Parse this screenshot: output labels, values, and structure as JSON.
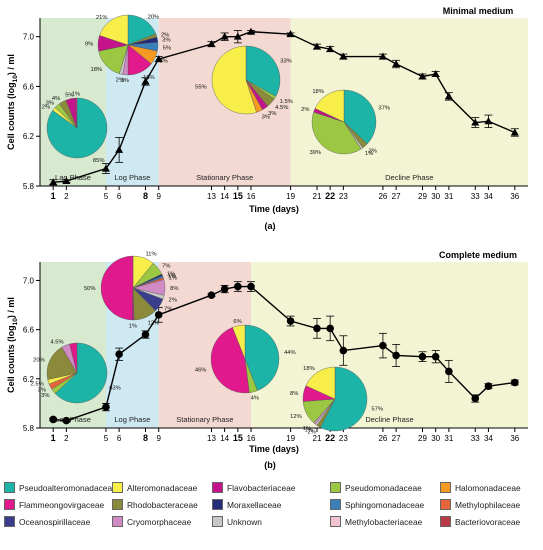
{
  "chart_data": [
    {
      "type": "line",
      "title": "Minimal medium",
      "panel_label": "(a)",
      "xlabel": "Time (days)",
      "ylabel": "Cell counts (log10) / ml",
      "ylabel_parts": [
        "Cell counts (log",
        "10",
        ") / ml"
      ],
      "ylim": [
        5.8,
        7.15
      ],
      "yticks": [
        "5.8",
        "6.2",
        "6.6",
        "7.0"
      ],
      "xticks": [
        {
          "v": 1,
          "label": "1",
          "bold": true
        },
        {
          "v": 2,
          "label": "2"
        },
        {
          "v": 5,
          "label": "5"
        },
        {
          "v": 6,
          "label": "6"
        },
        {
          "v": 8,
          "label": "8",
          "bold": true
        },
        {
          "v": 9,
          "label": "9"
        },
        {
          "v": 13,
          "label": "13"
        },
        {
          "v": 14,
          "label": "14"
        },
        {
          "v": 15,
          "label": "15",
          "bold": true
        },
        {
          "v": 16,
          "label": "16"
        },
        {
          "v": 19,
          "label": "19"
        },
        {
          "v": 21,
          "label": "21"
        },
        {
          "v": 22,
          "label": "22",
          "bold": true
        },
        {
          "v": 23,
          "label": "23"
        },
        {
          "v": 26,
          "label": "26"
        },
        {
          "v": 27,
          "label": "27"
        },
        {
          "v": 29,
          "label": "29"
        },
        {
          "v": 30,
          "label": "30"
        },
        {
          "v": 31,
          "label": "31"
        },
        {
          "v": 33,
          "label": "33"
        },
        {
          "v": 34,
          "label": "34"
        },
        {
          "v": 36,
          "label": "36"
        }
      ],
      "phases": [
        {
          "name": "Lag Phase",
          "from": 0,
          "to": 5,
          "color": "#d7e9cf"
        },
        {
          "name": "Log Phase",
          "from": 5,
          "to": 9,
          "color": "#cfe9f3"
        },
        {
          "name": "Stationary Phase",
          "from": 9,
          "to": 19,
          "color": "#f3d9d2"
        },
        {
          "name": "Decline Phase",
          "from": 19,
          "to": 37,
          "color": "#f3f4d4"
        }
      ],
      "marker": "triangle",
      "series": [
        {
          "x": [
            1,
            2,
            5,
            6,
            8,
            9,
            13,
            14,
            15,
            16,
            19,
            21,
            22,
            23,
            26,
            27,
            29,
            30,
            31,
            33,
            34,
            36
          ],
          "y": [
            5.83,
            5.84,
            5.94,
            6.09,
            6.64,
            6.82,
            6.94,
            7.0,
            7.0,
            7.04,
            7.02,
            6.92,
            6.9,
            6.84,
            6.84,
            6.78,
            6.68,
            6.7,
            6.52,
            6.31,
            6.32,
            6.23
          ],
          "err": [
            0.02,
            0.01,
            0.04,
            0.1,
            0.03,
            0.02,
            0.02,
            0.03,
            0.05,
            0.01,
            0.01,
            0.02,
            0.02,
            0.02,
            0.02,
            0.03,
            0.02,
            0.02,
            0.03,
            0.04,
            0.05,
            0.03
          ]
        }
      ],
      "pies": [
        {
          "day": 1,
          "slices": [
            {
              "family": "Pseudoalteromonadaceae",
              "pct": 85,
              "label": "85%"
            },
            {
              "family": "Alteromonadaceae",
              "pct": 2,
              "label": "2%"
            },
            {
              "family": "Pseudomonadaceae",
              "pct": 3,
              "label": "3%"
            },
            {
              "family": "Rhodobacteraceae",
              "pct": 4,
              "label": "4%"
            },
            {
              "family": "Flavobacteriaceae",
              "pct": 5,
              "label": "5%"
            },
            {
              "family": "Flammeongovirgaceae",
              "pct": 1,
              "label": "1%"
            }
          ]
        },
        {
          "day": 8,
          "slices": [
            {
              "family": "Pseudoalteromonadaceae",
              "pct": 20,
              "label": "20%"
            },
            {
              "family": "Rhodobacteraceae",
              "pct": 2,
              "label": "2%"
            },
            {
              "family": "Moraxellaceae",
              "pct": 3,
              "label": "3%"
            },
            {
              "family": "Sphingomonadaceae",
              "pct": 5,
              "label": "5%"
            },
            {
              "family": "Halomonadaceae",
              "pct": 8,
              "label": "8%"
            },
            {
              "family": "Flammeongovirgaceae",
              "pct": 15,
              "label": "15%"
            },
            {
              "family": "Cryomorphaceae",
              "pct": 3,
              "label": "3%"
            },
            {
              "family": "Unknown",
              "pct": 2,
              "label": "2%"
            },
            {
              "family": "Pseudomonadaceae",
              "pct": 18,
              "label": "18%"
            },
            {
              "family": "Flavobacteriaceae",
              "pct": 9,
              "label": "9%"
            },
            {
              "family": "Alteromonadaceae",
              "pct": 21,
              "label": "21%"
            }
          ]
        },
        {
          "day": 15,
          "slices": [
            {
              "family": "Pseudoalteromonadaceae",
              "pct": 33,
              "label": "33%"
            },
            {
              "family": "Pseudomonadaceae",
              "pct": 1.5,
              "label": "1.5%"
            },
            {
              "family": "Rhodobacteraceae",
              "pct": 4.5,
              "label": "4.5%"
            },
            {
              "family": "Flavobacteriaceae",
              "pct": 3,
              "label": "3%"
            },
            {
              "family": "Halomonadaceae",
              "pct": 3,
              "label": "3%"
            },
            {
              "family": "Alteromonadaceae",
              "pct": 55,
              "label": "55%"
            }
          ]
        },
        {
          "day": 22,
          "slices": [
            {
              "family": "Pseudoalteromonadaceae",
              "pct": 37,
              "label": "37%"
            },
            {
              "family": "Rhodobacteraceae",
              "pct": 3,
              "label": "3%"
            },
            {
              "family": "Unknown",
              "pct": 1,
              "label": "1%"
            },
            {
              "family": "Pseudomonadaceae",
              "pct": 39,
              "label": "39%"
            },
            {
              "family": "Flavobacteriaceae",
              "pct": 2,
              "label": "2%"
            },
            {
              "family": "Alteromonadaceae",
              "pct": 18,
              "label": "18%"
            }
          ]
        }
      ]
    },
    {
      "type": "line",
      "title": "Complete medium",
      "panel_label": "(b)",
      "xlabel": "Time (days)",
      "ylabel": "Cell counts (log10) / ml",
      "ylabel_parts": [
        "Cell counts (log",
        "10",
        ") / ml"
      ],
      "ylim": [
        5.8,
        7.15
      ],
      "yticks": [
        "5.8",
        "6.2",
        "6.6",
        "7.0"
      ],
      "xticks": [
        {
          "v": 1,
          "label": "1",
          "bold": true
        },
        {
          "v": 2,
          "label": "2"
        },
        {
          "v": 5,
          "label": "5"
        },
        {
          "v": 6,
          "label": "6"
        },
        {
          "v": 8,
          "label": "8",
          "bold": true
        },
        {
          "v": 9,
          "label": "9"
        },
        {
          "v": 13,
          "label": "13"
        },
        {
          "v": 14,
          "label": "14"
        },
        {
          "v": 15,
          "label": "15",
          "bold": true
        },
        {
          "v": 16,
          "label": "16"
        },
        {
          "v": 19,
          "label": "19"
        },
        {
          "v": 21,
          "label": "21"
        },
        {
          "v": 22,
          "label": "22",
          "bold": true
        },
        {
          "v": 23,
          "label": "23"
        },
        {
          "v": 26,
          "label": "26"
        },
        {
          "v": 27,
          "label": "27"
        },
        {
          "v": 29,
          "label": "29"
        },
        {
          "v": 30,
          "label": "30"
        },
        {
          "v": 31,
          "label": "31"
        },
        {
          "v": 33,
          "label": "33"
        },
        {
          "v": 34,
          "label": "34"
        },
        {
          "v": 36,
          "label": "36"
        }
      ],
      "phases": [
        {
          "name": "Lag Phase",
          "from": 0,
          "to": 5,
          "color": "#d7e9cf"
        },
        {
          "name": "Log Phase",
          "from": 5,
          "to": 9,
          "color": "#cfe9f3"
        },
        {
          "name": "Stationary Phase",
          "from": 9,
          "to": 16,
          "color": "#f3d9d2"
        },
        {
          "name": "Decline Phase",
          "from": 16,
          "to": 37,
          "color": "#f3f4d4"
        }
      ],
      "marker": "circle",
      "series": [
        {
          "x": [
            1,
            2,
            5,
            6,
            8,
            9,
            13,
            14,
            15,
            16,
            19,
            21,
            22,
            23,
            26,
            27,
            29,
            30,
            31,
            33,
            34,
            36
          ],
          "y": [
            5.87,
            5.86,
            5.97,
            6.4,
            6.56,
            6.72,
            6.88,
            6.93,
            6.95,
            6.95,
            6.67,
            6.61,
            6.61,
            6.43,
            6.47,
            6.39,
            6.38,
            6.38,
            6.26,
            6.04,
            6.14,
            6.17
          ],
          "err": [
            0.01,
            0.01,
            0.03,
            0.05,
            0.03,
            0.06,
            0.01,
            0.03,
            0.04,
            0.04,
            0.04,
            0.08,
            0.1,
            0.12,
            0.1,
            0.09,
            0.04,
            0.05,
            0.09,
            0.03,
            0.02,
            0.02
          ]
        }
      ],
      "pies": [
        {
          "day": 1,
          "slices": [
            {
              "family": "Pseudoalteromonadaceae",
              "pct": 63,
              "label": "63%"
            },
            {
              "family": "Pseudomonadaceae",
              "pct": 3,
              "label": "3%"
            },
            {
              "family": "Methylophilaceae",
              "pct": 3,
              "label": "3%"
            },
            {
              "family": "Alteromonadaceae",
              "pct": 2.5,
              "label": "2.5%"
            },
            {
              "family": "Rhodobacteraceae",
              "pct": 20,
              "label": "20%"
            },
            {
              "family": "Cryomorphaceae",
              "pct": 4.5,
              "label": "4.5%"
            },
            {
              "family": "Flammeongovirgaceae",
              "pct": 4,
              "label": ""
            }
          ]
        },
        {
          "day": 8,
          "slices": [
            {
              "family": "Alteromonadaceae",
              "pct": 11,
              "label": "11%"
            },
            {
              "family": "Pseudomonadaceae",
              "pct": 7,
              "label": "7%"
            },
            {
              "family": "Moraxellaceae",
              "pct": 1,
              "label": "1%"
            },
            {
              "family": "Sphingomonadaceae",
              "pct": 1,
              "label": "1%"
            },
            {
              "family": "Methylophilaceae",
              "pct": 1,
              "label": "1%"
            },
            {
              "family": "Cryomorphaceae",
              "pct": 8,
              "label": "8%"
            },
            {
              "family": "Unknown",
              "pct": 2,
              "label": "2%"
            },
            {
              "family": "Oceanospirillaceae",
              "pct": 7,
              "label": "7%"
            },
            {
              "family": "Rhodobacteraceae",
              "pct": 12,
              "label": "12%"
            },
            {
              "family": "Flavobacteriaceae",
              "pct": 1,
              "label": "1%"
            },
            {
              "family": "Flammeongovirgaceae",
              "pct": 50,
              "label": "50%"
            }
          ]
        },
        {
          "day": 15,
          "slices": [
            {
              "family": "Pseudoalteromonadaceae",
              "pct": 44,
              "label": "44%"
            },
            {
              "family": "Pseudomonadaceae",
              "pct": 4,
              "label": "4%"
            },
            {
              "family": "Flammeongovirgaceae",
              "pct": 46,
              "label": "46%"
            },
            {
              "family": "Alteromonadaceae",
              "pct": 6,
              "label": "6%"
            }
          ]
        },
        {
          "day": 22,
          "slices": [
            {
              "family": "Pseudoalteromonadaceae",
              "pct": 57,
              "label": "57%"
            },
            {
              "family": "Rhodobacteraceae",
              "pct": 2,
              "label": "2%"
            },
            {
              "family": "Unknown",
              "pct": 1,
              "label": "1%"
            },
            {
              "family": "Cryomorphaceae",
              "pct": 1,
              "label": "1%"
            },
            {
              "family": "Pseudomonadaceae",
              "pct": 12,
              "label": "12%"
            },
            {
              "family": "Flammeongovirgaceae",
              "pct": 8,
              "label": "8%"
            },
            {
              "family": "Alteromonadaceae",
              "pct": 18,
              "label": "18%"
            }
          ]
        }
      ]
    }
  ],
  "legend": [
    {
      "name": "Pseudoalteromonadaceae",
      "color": "#1db4a8"
    },
    {
      "name": "Alteromonadaceae",
      "color": "#f7ee4a"
    },
    {
      "name": "Flavobacteriaceae",
      "color": "#c4148b"
    },
    {
      "name": "Pseudomonadaceae",
      "color": "#9bc743"
    },
    {
      "name": "Halomonadaceae",
      "color": "#f59a23"
    },
    {
      "name": "Flammeongovirgaceae",
      "color": "#e0198c"
    },
    {
      "name": "Rhodobacteraceae",
      "color": "#8b8a3a"
    },
    {
      "name": "Moraxellaceae",
      "color": "#242c7a"
    },
    {
      "name": "Sphingomonadaceae",
      "color": "#3b7fb8"
    },
    {
      "name": "Methylophilaceae",
      "color": "#e8643a"
    },
    {
      "name": "Oceanospirillaceae",
      "color": "#3a3c8c"
    },
    {
      "name": "Cryomorphaceae",
      "color": "#d08ac4"
    },
    {
      "name": "Unknown",
      "color": "#c8c8c8"
    },
    {
      "name": "Methylobacteriaceae",
      "color": "#f2c4d0"
    },
    {
      "name": "Bacteriovoraceae",
      "color": "#b83a46"
    }
  ]
}
